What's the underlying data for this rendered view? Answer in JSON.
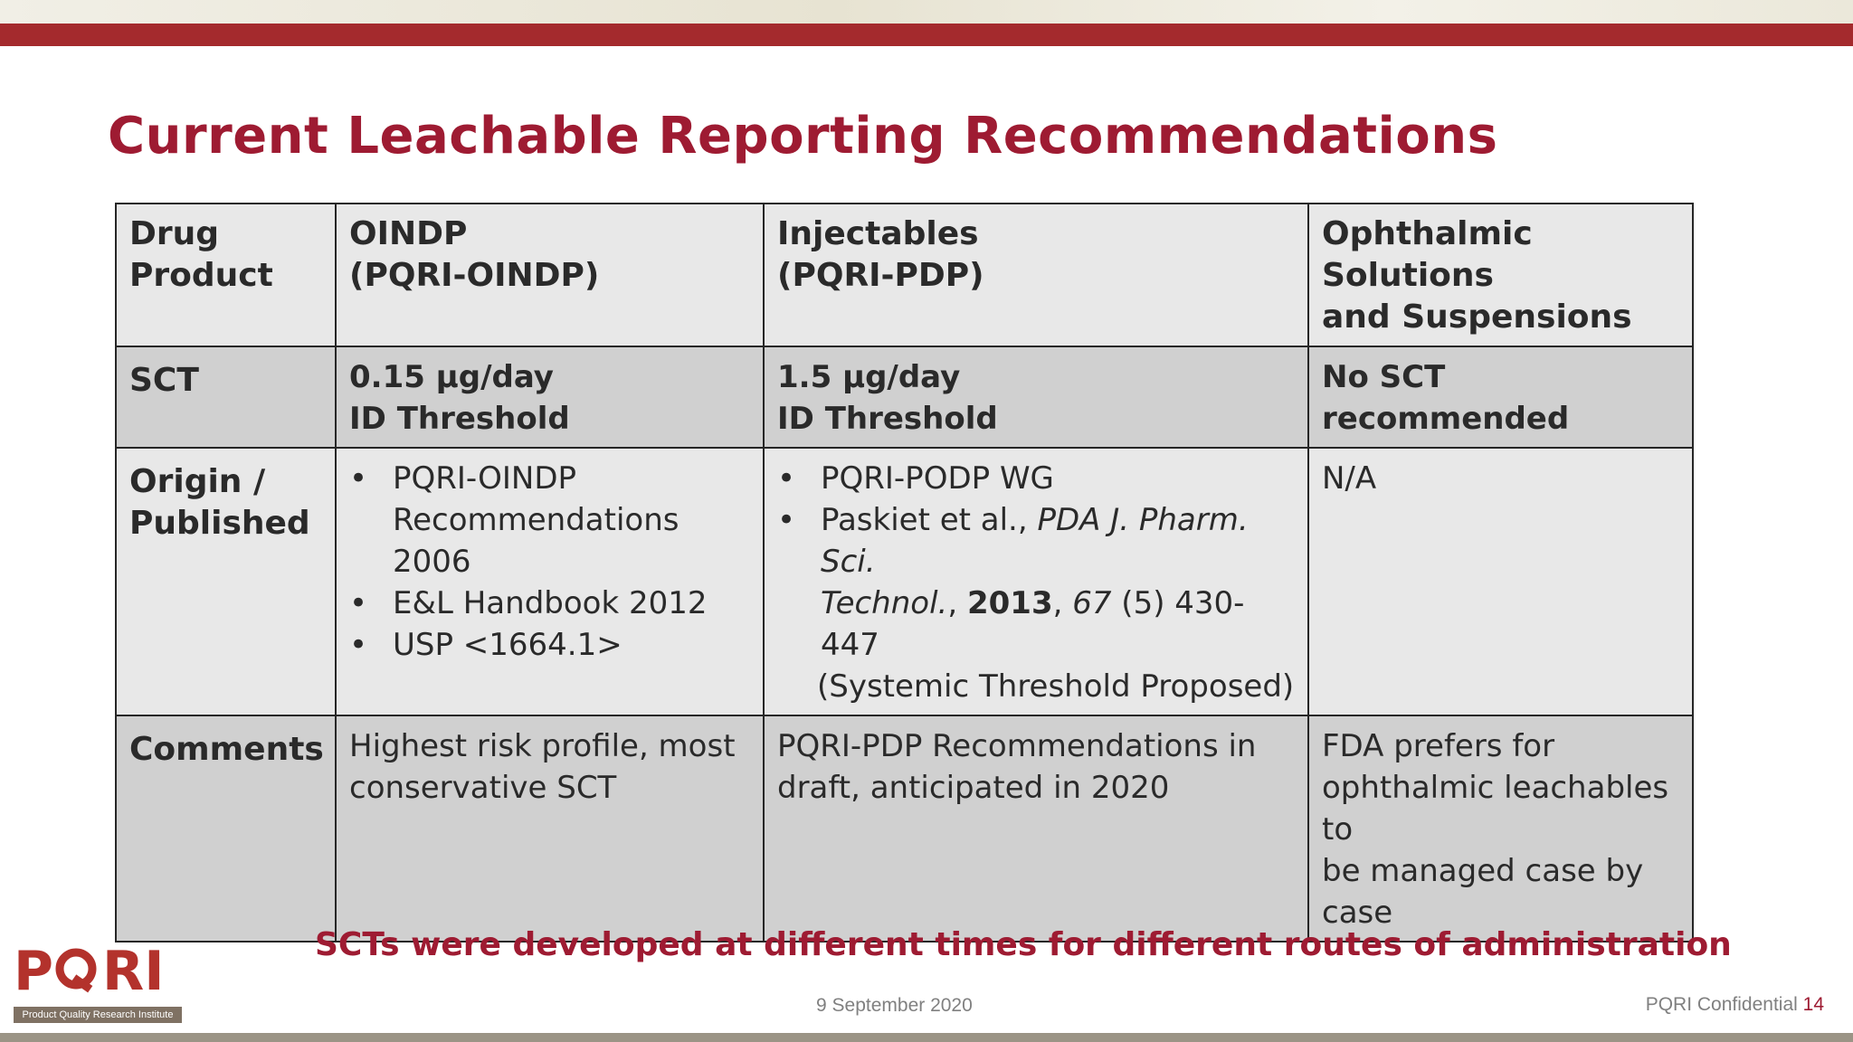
{
  "slide": {
    "title": "Current Leachable Reporting Recommendations",
    "tagline": "SCTs were developed at different times for different routes of administration",
    "footer_date": "9 September 2020",
    "footer_confidential": "PQRI Confidential",
    "page_number": "14"
  },
  "logo": {
    "wordmark_p": "P",
    "wordmark_q": "Q",
    "wordmark_ri": "RI",
    "tagline": "Product Quality Research Institute"
  },
  "table": {
    "header": {
      "col0_l1": "Drug",
      "col0_l2": "Product",
      "col1_l1": "OINDP",
      "col1_l2": "(PQRI-OINDP)",
      "col2_l1": "Injectables",
      "col2_l2": "(PQRI-PDP)",
      "col3_l1": "Ophthalmic Solutions",
      "col3_l2": "and Suspensions"
    },
    "sct": {
      "label": "SCT",
      "oindp_l1": "0.15 µg/day",
      "oindp_l2": "ID Threshold",
      "inj_l1": "1.5 µg/day",
      "inj_l2": "ID Threshold",
      "oph": "No SCT recommended"
    },
    "origin": {
      "label_l1": "Origin /",
      "label_l2": "Published",
      "oindp_b1_l1": "PQRI-OINDP",
      "oindp_b1_l2": "Recommendations 2006",
      "oindp_b2": "E&L Handbook 2012",
      "oindp_b3": "USP <1664.1>",
      "inj_b1": "PQRI-PODP WG",
      "inj_b2_authors": "Paskiet et al., ",
      "inj_b2_journal_l1": "PDA J. Pharm. Sci.",
      "inj_b2_journal_l2": "Technol.",
      "inj_b2_comma1": ", ",
      "inj_b2_year": "2013",
      "inj_b2_comma2": ", ",
      "inj_b2_volume": "67",
      "inj_b2_issue_pages": " (5) 430-447",
      "inj_b2_note": "(Systemic Threshold Proposed)",
      "oph": "N/A"
    },
    "comments": {
      "label": "Comments",
      "oindp_l1": "Highest risk profile, most",
      "oindp_l2": "conservative SCT",
      "inj_l1": "PQRI-PDP Recommendations in",
      "inj_l2": "draft, anticipated in 2020",
      "oph_l1": "FDA prefers for",
      "oph_l2": "ophthalmic leachables to",
      "oph_l3": "be managed case by",
      "oph_l4": "case"
    }
  },
  "colors": {
    "accent_red": "#9e1b32",
    "top_bar": "#a42a2d",
    "row_light": "#e8e8e8",
    "row_dark": "#d0d0d0",
    "footer_gray": "#808080"
  }
}
